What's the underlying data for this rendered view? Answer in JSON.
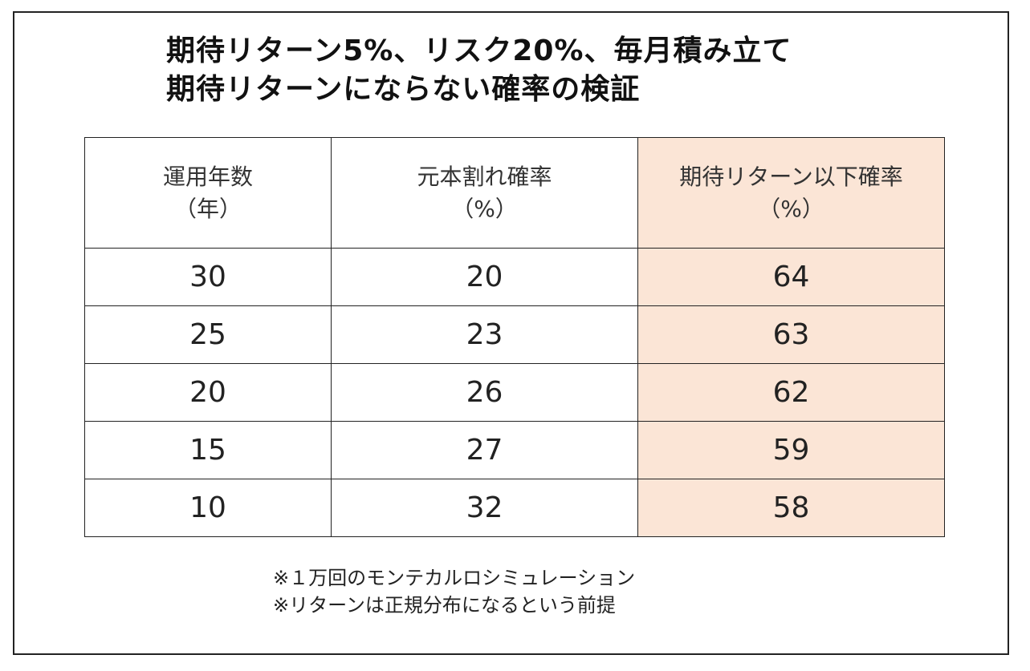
{
  "title": {
    "line1": "期待リターン5%、リスク20%、毎月積み立て",
    "line2": "期待リターンにならない確率の検証"
  },
  "chart_data": {
    "type": "table",
    "columns": [
      {
        "label": "運用年数",
        "unit": "（年）"
      },
      {
        "label": "元本割れ確率",
        "unit": "（%）"
      },
      {
        "label": "期待リターン以下確率",
        "unit": "（%）"
      }
    ],
    "rows": [
      [
        "30",
        "20",
        "64"
      ],
      [
        "25",
        "23",
        "63"
      ],
      [
        "20",
        "26",
        "62"
      ],
      [
        "15",
        "27",
        "59"
      ],
      [
        "10",
        "32",
        "58"
      ]
    ],
    "highlight_column": 2,
    "highlight_color": "#fbe5d6"
  },
  "notes": [
    "※１万回のモンテカルロシミュレーション",
    "※リターンは正規分布になるという前提"
  ]
}
